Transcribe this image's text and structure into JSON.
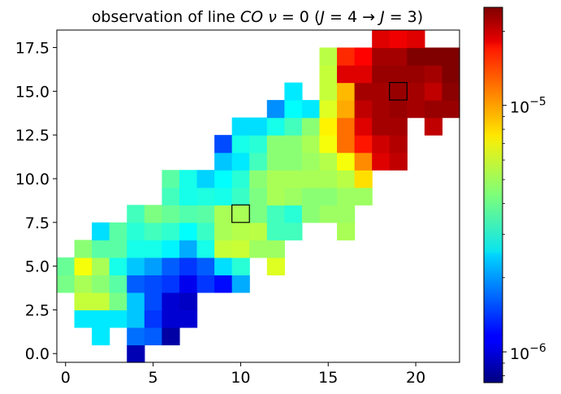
{
  "chart_data": {
    "type": "heatmap",
    "title": "observation of line CO ν = 0 (J = 4 → J = 3)",
    "title_parts": {
      "pre": "observation of line ",
      "species": "CO",
      "nu": "ν",
      "nu_eq": " = 0 (",
      "j_upper": "J",
      "j_upper_eq": " = 4 → ",
      "j_lower": "J",
      "j_lower_eq": " = 3)"
    },
    "colormap": "jet",
    "color_scale": "log",
    "color_range": [
      7.5e-07,
      2.5e-05
    ],
    "xlim": [
      -0.5,
      22.5
    ],
    "ylim": [
      -0.5,
      18.5
    ],
    "x_ticks": [
      {
        "value": 0,
        "label": "0"
      },
      {
        "value": 5,
        "label": "5"
      },
      {
        "value": 10,
        "label": "10"
      },
      {
        "value": 15,
        "label": "15"
      },
      {
        "value": 20,
        "label": "20"
      }
    ],
    "y_ticks": [
      {
        "value": 0.0,
        "label": "0.0"
      },
      {
        "value": 2.5,
        "label": "2.5"
      },
      {
        "value": 5.0,
        "label": "5.0"
      },
      {
        "value": 7.5,
        "label": "7.5"
      },
      {
        "value": 10.0,
        "label": "10.0"
      },
      {
        "value": 12.5,
        "label": "12.5"
      },
      {
        "value": 15.0,
        "label": "15.0"
      },
      {
        "value": 17.5,
        "label": "17.5"
      }
    ],
    "colorbar_ticks": [
      {
        "value": 1e-06,
        "base": "10",
        "exp": "−6"
      },
      {
        "value": 1e-05,
        "base": "10",
        "exp": "−5"
      }
    ],
    "highlighted_pixels": [
      {
        "x": 10,
        "y": 8
      },
      {
        "x": 19,
        "y": 15
      }
    ],
    "cells": [
      [
        4,
        0,
        9e-07
      ],
      [
        2,
        1,
        2.6e-06
      ],
      [
        4,
        1,
        1.7e-06
      ],
      [
        5,
        1,
        1.6e-06
      ],
      [
        6,
        1,
        8.5e-07
      ],
      [
        1,
        2,
        2.6e-06
      ],
      [
        2,
        2,
        2.6e-06
      ],
      [
        3,
        2,
        2.6e-06
      ],
      [
        4,
        2,
        2.3e-06
      ],
      [
        5,
        2,
        1.4e-06
      ],
      [
        6,
        2,
        1e-06
      ],
      [
        7,
        2,
        1e-06
      ],
      [
        1,
        3,
        5.5e-06
      ],
      [
        2,
        3,
        5.5e-06
      ],
      [
        3,
        3,
        4.2e-06
      ],
      [
        4,
        3,
        2.3e-06
      ],
      [
        5,
        3,
        1.5e-06
      ],
      [
        6,
        3,
        1e-06
      ],
      [
        7,
        3,
        9.5e-07
      ],
      [
        0,
        4,
        4.2e-06
      ],
      [
        1,
        4,
        5e-06
      ],
      [
        2,
        4,
        4.5e-06
      ],
      [
        3,
        4,
        3.8e-06
      ],
      [
        4,
        4,
        1.6e-06
      ],
      [
        5,
        4,
        1.5e-06
      ],
      [
        6,
        4,
        1.4e-06
      ],
      [
        7,
        4,
        1.1e-06
      ],
      [
        8,
        4,
        1.4e-06
      ],
      [
        9,
        4,
        1.2e-06
      ],
      [
        10,
        4,
        2.1e-06
      ],
      [
        0,
        5,
        4e-06
      ],
      [
        1,
        5,
        6.5e-06
      ],
      [
        2,
        5,
        5e-06
      ],
      [
        3,
        5,
        3e-06
      ],
      [
        4,
        5,
        2.3e-06
      ],
      [
        5,
        5,
        2e-06
      ],
      [
        6,
        5,
        1.6e-06
      ],
      [
        7,
        5,
        1.4e-06
      ],
      [
        8,
        5,
        1.6e-06
      ],
      [
        9,
        5,
        2.5e-06
      ],
      [
        10,
        5,
        3.2e-06
      ],
      [
        12,
        5,
        6e-06
      ],
      [
        1,
        6,
        4.5e-06
      ],
      [
        2,
        6,
        3.8e-06
      ],
      [
        3,
        6,
        3.8e-06
      ],
      [
        4,
        6,
        3e-06
      ],
      [
        5,
        6,
        3e-06
      ],
      [
        6,
        6,
        2.7e-06
      ],
      [
        7,
        6,
        2.1e-06
      ],
      [
        8,
        6,
        3e-06
      ],
      [
        9,
        6,
        5.5e-06
      ],
      [
        10,
        6,
        5.6e-06
      ],
      [
        11,
        6,
        4.8e-06
      ],
      [
        12,
        6,
        4.8e-06
      ],
      [
        2,
        7,
        2.5e-06
      ],
      [
        3,
        7,
        3.8e-06
      ],
      [
        4,
        7,
        3.2e-06
      ],
      [
        5,
        7,
        3.5e-06
      ],
      [
        6,
        7,
        3.3e-06
      ],
      [
        7,
        7,
        2.8e-06
      ],
      [
        8,
        7,
        3.4e-06
      ],
      [
        9,
        7,
        5e-06
      ],
      [
        10,
        7,
        5.2e-06
      ],
      [
        11,
        7,
        5.3e-06
      ],
      [
        12,
        7,
        3.5e-06
      ],
      [
        13,
        7,
        3.5e-06
      ],
      [
        16,
        7,
        5e-06
      ],
      [
        4,
        8,
        3.5e-06
      ],
      [
        5,
        8,
        4.3e-06
      ],
      [
        6,
        8,
        4e-06
      ],
      [
        7,
        8,
        3.7e-06
      ],
      [
        8,
        8,
        3.8e-06
      ],
      [
        9,
        8,
        5e-06
      ],
      [
        10,
        8,
        5e-06
      ],
      [
        11,
        8,
        4.3e-06
      ],
      [
        12,
        8,
        3.5e-06
      ],
      [
        13,
        8,
        3.2e-06
      ],
      [
        14,
        8,
        4.5e-06
      ],
      [
        15,
        8,
        4.8e-06
      ],
      [
        16,
        8,
        4.8e-06
      ],
      [
        6,
        9,
        3.5e-06
      ],
      [
        7,
        9,
        3e-06
      ],
      [
        8,
        9,
        3.1e-06
      ],
      [
        9,
        9,
        3e-06
      ],
      [
        10,
        9,
        3.4e-06
      ],
      [
        11,
        9,
        4.3e-06
      ],
      [
        12,
        9,
        5e-06
      ],
      [
        13,
        9,
        4.8e-06
      ],
      [
        14,
        9,
        4.5e-06
      ],
      [
        15,
        9,
        4.5e-06
      ],
      [
        16,
        9,
        4.8e-06
      ],
      [
        17,
        9,
        4.8e-06
      ],
      [
        6,
        10,
        3.8e-06
      ],
      [
        7,
        10,
        3e-06
      ],
      [
        8,
        10,
        2.4e-06
      ],
      [
        9,
        10,
        2.8e-06
      ],
      [
        10,
        10,
        3.2e-06
      ],
      [
        11,
        10,
        4.5e-06
      ],
      [
        12,
        10,
        5e-06
      ],
      [
        13,
        10,
        5e-06
      ],
      [
        14,
        10,
        5e-06
      ],
      [
        15,
        10,
        5e-06
      ],
      [
        16,
        10,
        5.3e-06
      ],
      [
        17,
        10,
        7.5e-06
      ],
      [
        9,
        11,
        2.3e-06
      ],
      [
        10,
        11,
        2.6e-06
      ],
      [
        11,
        11,
        3.5e-06
      ],
      [
        12,
        11,
        4.5e-06
      ],
      [
        13,
        11,
        4.5e-06
      ],
      [
        14,
        11,
        4.8e-06
      ],
      [
        15,
        11,
        5.2e-06
      ],
      [
        16,
        11,
        6.5e-06
      ],
      [
        17,
        11,
        1e-05
      ],
      [
        18,
        11,
        1.8e-05
      ],
      [
        19,
        11,
        2e-05
      ],
      [
        9,
        12,
        1.5e-06
      ],
      [
        10,
        12,
        3e-06
      ],
      [
        11,
        12,
        3.2e-06
      ],
      [
        12,
        12,
        4.5e-06
      ],
      [
        13,
        12,
        4.5e-06
      ],
      [
        14,
        12,
        5e-06
      ],
      [
        15,
        12,
        6.5e-06
      ],
      [
        16,
        12,
        1.1e-05
      ],
      [
        17,
        12,
        1.5e-05
      ],
      [
        18,
        12,
        1.9e-05
      ],
      [
        19,
        12,
        2.1e-05
      ],
      [
        10,
        13,
        2.5e-06
      ],
      [
        11,
        13,
        2.5e-06
      ],
      [
        12,
        13,
        3e-06
      ],
      [
        13,
        13,
        3.5e-06
      ],
      [
        14,
        13,
        4.5e-06
      ],
      [
        15,
        13,
        7e-06
      ],
      [
        16,
        13,
        1.1e-05
      ],
      [
        17,
        13,
        1.8e-05
      ],
      [
        18,
        13,
        2.2e-05
      ],
      [
        19,
        13,
        2.2e-05
      ],
      [
        21,
        13,
        2e-05
      ],
      [
        12,
        14,
        1.9e-06
      ],
      [
        13,
        14,
        2.8e-06
      ],
      [
        14,
        14,
        2.6e-06
      ],
      [
        15,
        14,
        6e-06
      ],
      [
        16,
        14,
        9e-06
      ],
      [
        17,
        14,
        2e-05
      ],
      [
        18,
        14,
        2.2e-05
      ],
      [
        19,
        14,
        2.3e-05
      ],
      [
        20,
        14,
        2.2e-05
      ],
      [
        21,
        14,
        2.3e-05
      ],
      [
        22,
        14,
        2.3e-05
      ],
      [
        13,
        15,
        2.6e-06
      ],
      [
        15,
        15,
        5.5e-06
      ],
      [
        16,
        15,
        8.5e-06
      ],
      [
        17,
        15,
        2.2e-05
      ],
      [
        18,
        15,
        2.2e-05
      ],
      [
        19,
        15,
        2.3e-05
      ],
      [
        20,
        15,
        2.2e-05
      ],
      [
        21,
        15,
        2e-05
      ],
      [
        22,
        15,
        2.4e-05
      ],
      [
        15,
        16,
        5.5e-06
      ],
      [
        16,
        16,
        1.8e-05
      ],
      [
        17,
        16,
        1.8e-05
      ],
      [
        18,
        16,
        2.3e-05
      ],
      [
        19,
        16,
        2.3e-05
      ],
      [
        20,
        16,
        2.3e-05
      ],
      [
        21,
        16,
        2.2e-05
      ],
      [
        22,
        16,
        2.5e-05
      ],
      [
        15,
        17,
        5.3e-06
      ],
      [
        16,
        17,
        1.4e-05
      ],
      [
        17,
        17,
        1.6e-05
      ],
      [
        18,
        17,
        2.2e-05
      ],
      [
        19,
        17,
        2.2e-05
      ],
      [
        20,
        17,
        2.5e-05
      ],
      [
        21,
        17,
        2.5e-05
      ],
      [
        22,
        17,
        2.5e-05
      ],
      [
        18,
        18,
        1.8e-05
      ],
      [
        19,
        18,
        1.7e-05
      ],
      [
        20,
        18,
        1.8e-05
      ]
    ]
  }
}
